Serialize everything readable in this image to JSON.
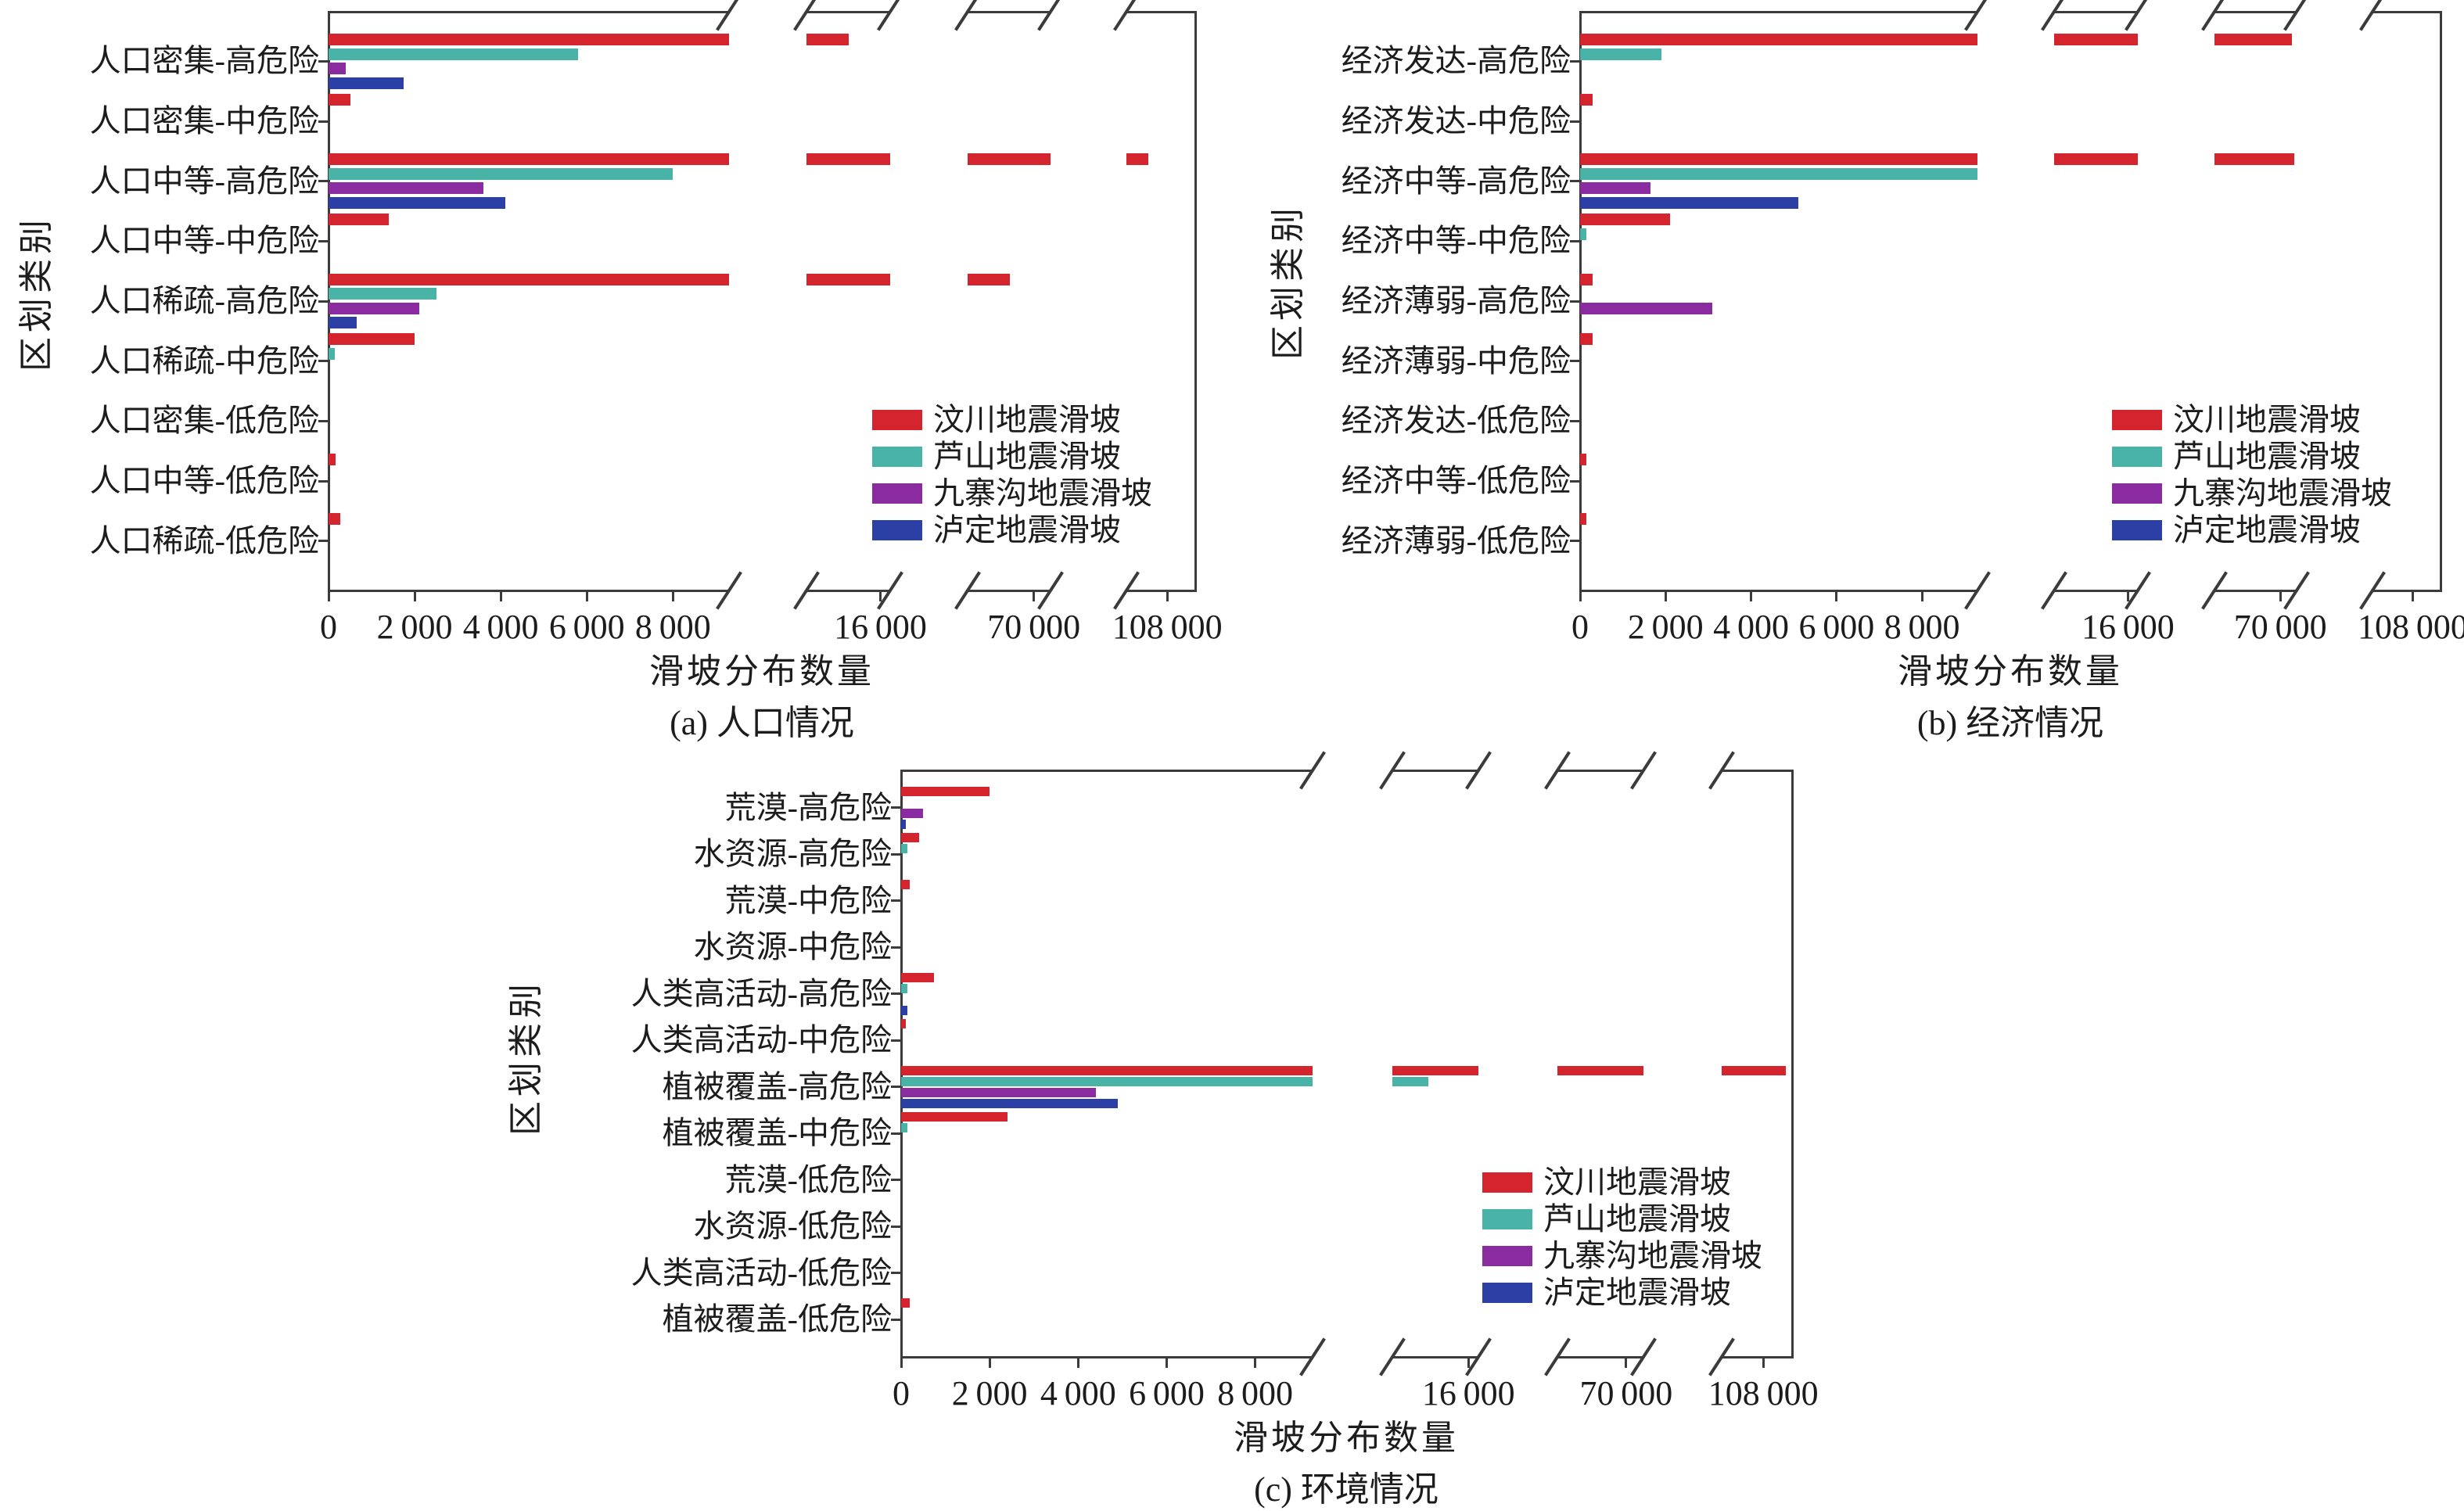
{
  "figure": {
    "background": "#ffffff",
    "text_color": "#1c1c1c",
    "axis_color": "#3b3b3b",
    "legend_labels": [
      "汶川地震滑坡",
      "芦山地震滑坡",
      "九寨沟地震滑坡",
      "泸定地震滑坡"
    ],
    "series_colors": [
      "#d4252e",
      "#4ab3a8",
      "#8b2ba0",
      "#2c3fa5"
    ],
    "x_tick_values": [
      0,
      2000,
      4000,
      6000,
      8000,
      16000,
      70000,
      108000
    ],
    "x_tick_labels": [
      "0",
      "2 000",
      "4 000",
      "6 000",
      "8 000",
      "16 000",
      "70 000",
      "108 000"
    ],
    "axis_breaks": [
      [
        9300,
        14100
      ],
      [
        16250,
        67200
      ],
      [
        70700,
        101500
      ]
    ]
  },
  "chart_data": [
    {
      "type": "bar",
      "orientation": "horizontal",
      "title": "(a) 人口情况",
      "xlabel": "滑坡分布数量",
      "ylabel": "区划类别",
      "xlim": [
        0,
        112500
      ],
      "grid": false,
      "legend_position": "inside lower right",
      "categories": [
        "人口密集-高危险",
        "人口密集-中危险",
        "人口中等-高危险",
        "人口中等-中危险",
        "人口稀疏-高危险",
        "人口稀疏-中危险",
        "人口密集-低危险",
        "人口中等-低危险",
        "人口稀疏-低危险"
      ],
      "series": [
        {
          "name": "汶川地震滑坡",
          "color": "#d4252e",
          "values": [
            15200,
            500,
            105000,
            1400,
            69000,
            2000,
            0,
            160,
            270
          ]
        },
        {
          "name": "芦山地震滑坡",
          "color": "#4ab3a8",
          "values": [
            5800,
            0,
            8000,
            0,
            2500,
            150,
            0,
            0,
            0
          ]
        },
        {
          "name": "九寨沟地震滑坡",
          "color": "#8b2ba0",
          "values": [
            400,
            0,
            3600,
            0,
            2100,
            0,
            0,
            0,
            0
          ]
        },
        {
          "name": "泸定地震滑坡",
          "color": "#2c3fa5",
          "values": [
            1750,
            0,
            4100,
            0,
            650,
            0,
            0,
            0,
            0
          ]
        }
      ]
    },
    {
      "type": "bar",
      "orientation": "horizontal",
      "title": "(b) 经济情况",
      "xlabel": "滑坡分布数量",
      "ylabel": "区划类别",
      "xlim": [
        0,
        112500
      ],
      "grid": false,
      "legend_position": "inside lower right",
      "categories": [
        "经济发达-高危险",
        "经济发达-中危险",
        "经济中等-高危险",
        "经济中等-中危险",
        "经济薄弱-高危险",
        "经济薄弱-中危险",
        "经济发达-低危险",
        "经济中等-低危险",
        "经济薄弱-低危险"
      ],
      "series": [
        {
          "name": "汶川地震滑坡",
          "color": "#d4252e",
          "values": [
            70500,
            300,
            70600,
            2100,
            300,
            300,
            0,
            150,
            150
          ]
        },
        {
          "name": "芦山地震滑坡",
          "color": "#4ab3a8",
          "values": [
            1900,
            0,
            10000,
            150,
            0,
            0,
            0,
            0,
            0
          ]
        },
        {
          "name": "九寨沟地震滑坡",
          "color": "#8b2ba0",
          "values": [
            0,
            0,
            1650,
            0,
            3100,
            0,
            0,
            0,
            0
          ]
        },
        {
          "name": "泸定地震滑坡",
          "color": "#2c3fa5",
          "values": [
            0,
            0,
            5100,
            0,
            0,
            0,
            0,
            0,
            0
          ]
        }
      ]
    },
    {
      "type": "bar",
      "orientation": "horizontal",
      "title": "(c) 环境情况",
      "xlabel": "滑坡分布数量",
      "ylabel": "区划类别",
      "xlim": [
        0,
        112500
      ],
      "grid": false,
      "legend_position": "inside lower right",
      "categories": [
        "荒漠-高危险",
        "水资源-高危险",
        "荒漠-中危险",
        "水资源-中危险",
        "人类高活动-高危险",
        "人类高活动-中危险",
        "植被覆盖-高危险",
        "植被覆盖-中危险",
        "荒漠-低危险",
        "水资源-低危险",
        "人类高活动-低危险",
        "植被覆盖-低危险"
      ],
      "series": [
        {
          "name": "汶川地震滑坡",
          "color": "#d4252e",
          "values": [
            2000,
            400,
            200,
            0,
            750,
            100,
            111500,
            2400,
            0,
            0,
            0,
            200
          ]
        },
        {
          "name": "芦山地震滑坡",
          "color": "#4ab3a8",
          "values": [
            0,
            150,
            0,
            0,
            150,
            0,
            15000,
            150,
            0,
            0,
            0,
            0
          ]
        },
        {
          "name": "九寨沟地震滑坡",
          "color": "#8b2ba0",
          "values": [
            500,
            0,
            0,
            0,
            0,
            0,
            4400,
            0,
            0,
            0,
            0,
            0
          ]
        },
        {
          "name": "泸定地震滑坡",
          "color": "#2c3fa5",
          "values": [
            100,
            0,
            0,
            0,
            150,
            0,
            4900,
            0,
            0,
            0,
            0,
            0
          ]
        }
      ]
    }
  ]
}
